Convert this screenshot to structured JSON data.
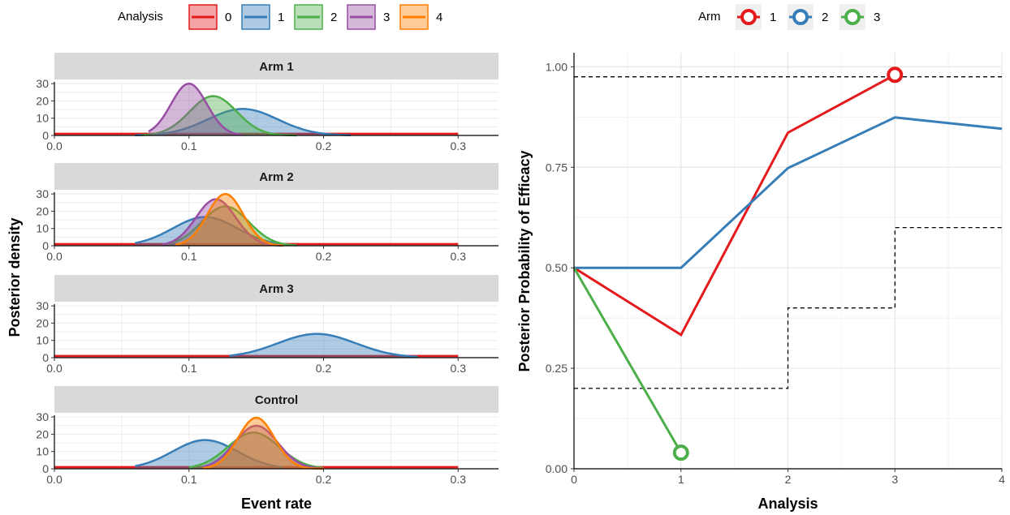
{
  "colors": {
    "0": "#e41a1c",
    "1": "#377eb8",
    "2": "#4daf4a",
    "3": "#984ea3",
    "4": "#ff7f00"
  },
  "chart_data": [
    {
      "type": "area",
      "xlabel": "Event rate",
      "ylabel": "Posterior density",
      "xlim": [
        0,
        0.33
      ],
      "ylim": [
        0,
        31
      ],
      "x_ticks": [
        "0.0",
        "0.1",
        "0.2",
        "0.3"
      ],
      "y_ticks": [
        "0",
        "10",
        "20",
        "30"
      ],
      "legend": {
        "title": "Analysis",
        "entries": [
          "0",
          "1",
          "2",
          "3",
          "4"
        ],
        "placement": "top"
      },
      "panels": [
        {
          "title": "Arm 1",
          "series": [
            {
              "name": "0",
              "type": "flat",
              "value": 1,
              "range": [
                0,
                0.3
              ]
            },
            {
              "name": "1",
              "mean": 0.14,
              "sd": 0.026,
              "range": [
                0.06,
                0.22
              ]
            },
            {
              "name": "2",
              "mean": 0.118,
              "sd": 0.0175,
              "range": [
                0.065,
                0.18
              ]
            },
            {
              "name": "3",
              "mean": 0.1,
              "sd": 0.0133,
              "range": [
                0.07,
                0.14
              ]
            }
          ]
        },
        {
          "title": "Arm 2",
          "series": [
            {
              "name": "0",
              "type": "flat",
              "value": 1,
              "range": [
                0,
                0.3
              ]
            },
            {
              "name": "1",
              "mean": 0.112,
              "sd": 0.024,
              "range": [
                0.06,
                0.17
              ]
            },
            {
              "name": "2",
              "mean": 0.127,
              "sd": 0.0175,
              "range": [
                0.08,
                0.18
              ]
            },
            {
              "name": "3",
              "mean": 0.12,
              "sd": 0.0148,
              "range": [
                0.08,
                0.17
              ]
            },
            {
              "name": "4",
              "mean": 0.127,
              "sd": 0.0133,
              "range": [
                0.09,
                0.17
              ]
            }
          ]
        },
        {
          "title": "Arm 3",
          "series": [
            {
              "name": "0",
              "type": "flat",
              "value": 1,
              "range": [
                0,
                0.3
              ]
            },
            {
              "name": "1",
              "mean": 0.195,
              "sd": 0.029,
              "range": [
                0.13,
                0.27
              ]
            }
          ]
        },
        {
          "title": "Control",
          "series": [
            {
              "name": "0",
              "type": "flat",
              "value": 1,
              "range": [
                0,
                0.3
              ]
            },
            {
              "name": "1",
              "mean": 0.112,
              "sd": 0.024,
              "range": [
                0.06,
                0.17
              ]
            },
            {
              "name": "2",
              "mean": 0.148,
              "sd": 0.019,
              "range": [
                0.1,
                0.2
              ]
            },
            {
              "name": "3",
              "mean": 0.15,
              "sd": 0.016,
              "range": [
                0.11,
                0.2
              ]
            },
            {
              "name": "4",
              "mean": 0.15,
              "sd": 0.0135,
              "range": [
                0.11,
                0.2
              ]
            }
          ]
        }
      ]
    },
    {
      "type": "line",
      "xlabel": "Analysis",
      "ylabel": "Posterior Probability of Efficacy",
      "xlim": [
        0,
        4
      ],
      "ylim": [
        0,
        1.0
      ],
      "x_ticks": [
        "0",
        "1",
        "2",
        "3",
        "4"
      ],
      "y_ticks": [
        "0.00",
        "0.25",
        "0.50",
        "0.75",
        "1.00"
      ],
      "legend": {
        "title": "Arm",
        "entries": [
          "1",
          "2",
          "3"
        ],
        "placement": "top"
      },
      "series": [
        {
          "name": "1",
          "color": "#e41a1c",
          "x": [
            0,
            1,
            2,
            3
          ],
          "y": [
            0.5,
            0.333,
            0.836,
            0.98
          ],
          "end_marker": [
            3,
            0.98
          ]
        },
        {
          "name": "2",
          "color": "#377eb8",
          "x": [
            0,
            1,
            2,
            3,
            4
          ],
          "y": [
            0.5,
            0.5,
            0.748,
            0.874,
            0.846
          ]
        },
        {
          "name": "3",
          "color": "#4daf4a",
          "x": [
            0,
            1
          ],
          "y": [
            0.5,
            0.04
          ],
          "end_marker": [
            1,
            0.04
          ]
        }
      ],
      "thresholds": [
        {
          "name": "upper",
          "style": "dashed",
          "x": [
            0,
            4
          ],
          "y": [
            0.975,
            0.975
          ]
        },
        {
          "name": "lower",
          "style": "dashed",
          "x": [
            0,
            2,
            2,
            3,
            3,
            4
          ],
          "y": [
            0.2,
            0.2,
            0.4,
            0.4,
            0.6,
            0.6
          ]
        }
      ]
    }
  ]
}
